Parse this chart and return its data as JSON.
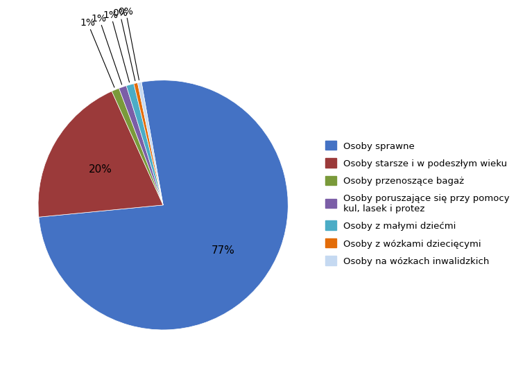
{
  "labels": [
    "Osoby sprawne",
    "Osoby starsze i w podeszłym wieku",
    "Osoby przenoszące bagaż",
    "Osoby poruszające się przy pomocy\nkul, lasek i protez",
    "Osoby z małymi dziećmi",
    "Osoby z wózkami dziecięcymi",
    "Osoby na wózkach inwalidzkich"
  ],
  "exact_values": [
    77,
    20,
    1,
    1,
    1,
    0.5,
    0.5
  ],
  "colors": [
    "#4472C4",
    "#9B3A3A",
    "#7A9A3A",
    "#7B5EA7",
    "#4BACC6",
    "#E36C09",
    "#C5D9F1"
  ],
  "pct_labels": [
    "77%",
    "20%",
    "1%",
    "1%",
    "1%",
    "0%",
    "0%"
  ],
  "background_color": "#FFFFFF",
  "legend_labels": [
    "Osoby sprawne",
    "Osoby starsze i w podeszłym wieku",
    "Osoby przenoszące bagaż",
    "Osoby poruszające się przy pomocy\nkul, lasek i protez",
    "Osoby z małymi dziećmi",
    "Osoby z wózkami dziecięcymi",
    "Osoby na wózkach inwalidzkich"
  ],
  "startangle": 77,
  "figsize": [
    8.66,
    5.64
  ]
}
